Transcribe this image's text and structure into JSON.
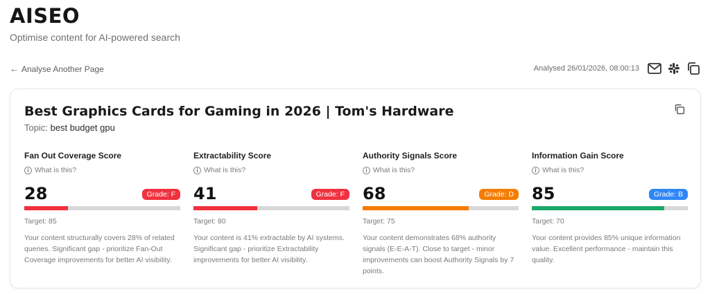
{
  "app": {
    "title": "AISEO",
    "subtitle": "Optimise content for AI-powered search"
  },
  "nav": {
    "back_label": "Analyse Another Page"
  },
  "meta": {
    "analysed": "Analysed 26/01/2026, 08:00:13",
    "icons": [
      "mail-icon",
      "slack-icon",
      "copy-icon"
    ]
  },
  "page": {
    "title": "Best Graphics Cards for Gaming in 2026 | Tom's Hardware",
    "topic_label": "Topic:",
    "topic_value": "best budget gpu",
    "copy_icon": "copy-icon"
  },
  "metrics": [
    {
      "name": "Fan Out Coverage Score",
      "whatis": "What is this?",
      "score": "28",
      "value": 28,
      "grade": "Grade: F",
      "color": "#f0313f",
      "target": "Target: 85",
      "description": "Your content structurally covers 28% of related queries. Significant gap - prioritize Fan-Out Coverage improvements for better AI visibility."
    },
    {
      "name": "Extractability Score",
      "whatis": "What is this?",
      "score": "41",
      "value": 41,
      "grade": "Grade: F",
      "color": "#f0313f",
      "target": "Target: 80",
      "description": "Your content is 41% extractable by AI systems. Significant gap - prioritize Extractability improvements for better AI visibility."
    },
    {
      "name": "Authority Signals Score",
      "whatis": "What is this?",
      "score": "68",
      "value": 68,
      "grade": "Grade: D",
      "color": "#f57c00",
      "target": "Target: 75",
      "description": "Your content demonstrates 68% authority signals (E-E-A-T). Close to target - minor improvements can boost Authority Signals by 7 points."
    },
    {
      "name": "Information Gain Score",
      "whatis": "What is this?",
      "score": "85",
      "value": 85,
      "grade": "Grade: B",
      "color": "#1aa86b",
      "grade_color": "#2f86f6",
      "target": "Target: 70",
      "description": "Your content provides 85% unique information value. Excellent performance - maintain this quality."
    }
  ]
}
